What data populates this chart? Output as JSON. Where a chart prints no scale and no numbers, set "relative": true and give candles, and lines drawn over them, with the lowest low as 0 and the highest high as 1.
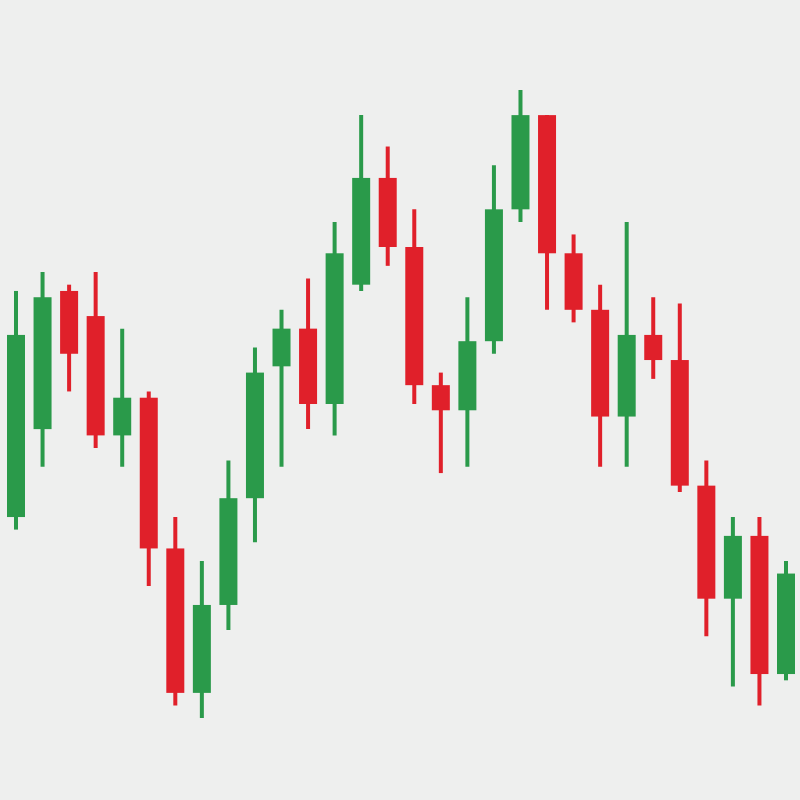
{
  "chart_data": {
    "type": "candlestick",
    "relative": true,
    "categories": [
      null,
      null,
      null,
      null,
      null,
      null,
      null,
      null,
      null,
      null,
      null,
      null,
      null,
      null,
      null,
      null,
      null,
      null,
      null,
      null,
      null,
      null,
      null,
      null,
      null,
      null,
      null,
      null,
      null,
      null
    ],
    "ohlc": [
      [
        0.32,
        0.68,
        0.3,
        0.61
      ],
      [
        0.46,
        0.71,
        0.4,
        0.67
      ],
      [
        0.68,
        0.69,
        0.52,
        0.58
      ],
      [
        0.64,
        0.71,
        0.43,
        0.45
      ],
      [
        0.45,
        0.62,
        0.4,
        0.51
      ],
      [
        0.51,
        0.52,
        0.21,
        0.27
      ],
      [
        0.27,
        0.32,
        0.02,
        0.04
      ],
      [
        0.04,
        0.25,
        0,
        0.18
      ],
      [
        0.18,
        0.41,
        0.14,
        0.35
      ],
      [
        0.35,
        0.59,
        0.28,
        0.55
      ],
      [
        0.56,
        0.65,
        0.4,
        0.62
      ],
      [
        0.62,
        0.7,
        0.46,
        0.5
      ],
      [
        0.5,
        0.79,
        0.45,
        0.74
      ],
      [
        0.69,
        0.96,
        0.68,
        0.86
      ],
      [
        0.86,
        0.91,
        0.72,
        0.75
      ],
      [
        0.75,
        0.81,
        0.5,
        0.53
      ],
      [
        0.53,
        0.55,
        0.39,
        0.49
      ],
      [
        0.49,
        0.67,
        0.4,
        0.6
      ],
      [
        0.6,
        0.88,
        0.58,
        0.81
      ],
      [
        0.81,
        1,
        0.79,
        0.96
      ],
      [
        0.96,
        0.96,
        0.65,
        0.74
      ],
      [
        0.74,
        0.77,
        0.63,
        0.65
      ],
      [
        0.65,
        0.69,
        0.4,
        0.48
      ],
      [
        0.48,
        0.79,
        0.4,
        0.61
      ],
      [
        0.61,
        0.67,
        0.54,
        0.57
      ],
      [
        0.57,
        0.66,
        0.36,
        0.37
      ],
      [
        0.37,
        0.41,
        0.13,
        0.19
      ],
      [
        0.19,
        0.32,
        0.05,
        0.29
      ],
      [
        0.29,
        0.32,
        0.02,
        0.07
      ],
      [
        0.07,
        0.25,
        0.06,
        0.23
      ]
    ],
    "colors": [
      "#2a9a4a",
      "#2a9a4a",
      "#e0202a",
      "#e0202a",
      "#2a9a4a",
      "#e0202a",
      "#e0202a",
      "#2a9a4a",
      "#2a9a4a",
      "#2a9a4a",
      "#2a9a4a",
      "#e0202a",
      "#2a9a4a",
      "#2a9a4a",
      "#e0202a",
      "#e0202a",
      "#e0202a",
      "#2a9a4a",
      "#2a9a4a",
      "#2a9a4a",
      "#e0202a",
      "#e0202a",
      "#e0202a",
      "#2a9a4a",
      "#e0202a",
      "#e0202a",
      "#e0202a",
      "#2a9a4a",
      "#e0202a",
      "#2a9a4a"
    ]
  }
}
